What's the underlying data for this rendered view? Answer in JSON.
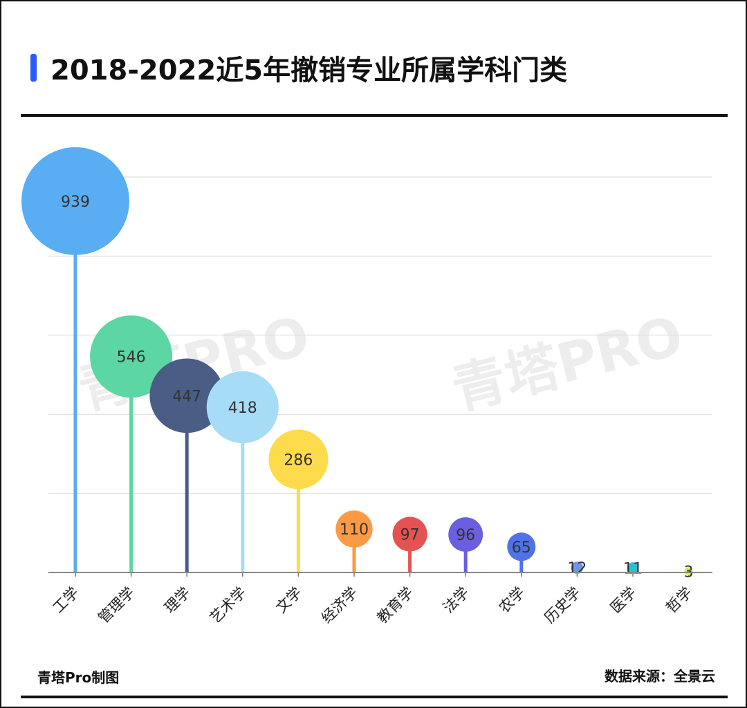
{
  "title": "2018-2022近5年撤销专业所属学科门类",
  "accent_color": "#2b5bff",
  "watermark": "青塔PRO",
  "footer": {
    "left": "青塔Pro制图",
    "right": "数据来源：全景云"
  },
  "chart_data": {
    "type": "bubble-lollipop",
    "title": "2018-2022近5年撤销专业所属学科门类",
    "xlabel": "",
    "ylabel": "",
    "ylim": [
      0,
      1000
    ],
    "grid": true,
    "legend": "none",
    "categories": [
      "工学",
      "管理学",
      "理学",
      "艺术学",
      "文学",
      "经济学",
      "教育学",
      "法学",
      "农学",
      "历史学",
      "医学",
      "哲学"
    ],
    "values": [
      939,
      546,
      447,
      418,
      286,
      110,
      97,
      96,
      65,
      12,
      11,
      3
    ],
    "colors": [
      "#59adf2",
      "#5cd6a2",
      "#4a5d85",
      "#a7dcf7",
      "#fddb4c",
      "#fb9a45",
      "#e55252",
      "#6a5fe0",
      "#4f73e6",
      "#6f95e8",
      "#2abfd1",
      "#d6ea5a"
    ]
  }
}
